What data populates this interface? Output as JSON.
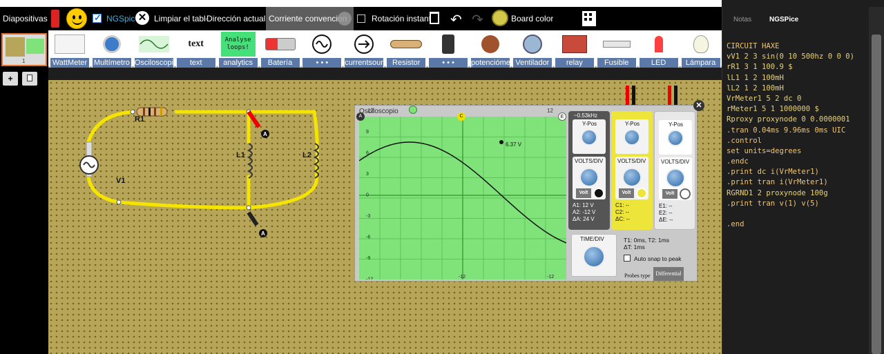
{
  "toolbar": {
    "slides_label": "Diapositivas",
    "ngspice_label": "NGSpice",
    "clear_board": "Limpiar el tablero",
    "current_dir_label": "Dirección actual:",
    "current_dir_value": "Corriente convencional",
    "rotation_label": "Rotación instantá",
    "board_color": "Board color"
  },
  "sidebar": {
    "slide_number": "1",
    "add_label": "+"
  },
  "components": [
    {
      "name": "WattMeter",
      "icon": "wattmeter-icon"
    },
    {
      "name": "Multímetro",
      "icon": "multimeter-icon"
    },
    {
      "name": "Osciloscopio",
      "icon": "oscilloscope-icon"
    },
    {
      "name": "text",
      "icon": "text-icon",
      "icon_text": "text"
    },
    {
      "name": "analytics",
      "icon": "analyse-icon",
      "icon_text": "Analyse loops!"
    },
    {
      "name": "Batería",
      "icon": "battery-icon"
    },
    {
      "name": "• • •",
      "icon": "ac-source-icon"
    },
    {
      "name": "currentsource",
      "icon": "current-source-icon"
    },
    {
      "name": "Resistor",
      "icon": "resistor-icon"
    },
    {
      "name": "• • •",
      "icon": "switch-icon"
    },
    {
      "name": "potenciómetro",
      "icon": "potentiometer-icon"
    },
    {
      "name": "Ventilador",
      "icon": "fan-icon"
    },
    {
      "name": "relay",
      "icon": "relay-icon"
    },
    {
      "name": "Fusible",
      "icon": "fuse-icon"
    },
    {
      "name": "LED",
      "icon": "led-icon"
    },
    {
      "name": "Lámpara",
      "icon": "lamp-icon"
    }
  ],
  "circuit": {
    "r1_label": "R1",
    "v1_label": "V1",
    "l1_label": "L1",
    "l2_label": "L2",
    "probe_a": "A"
  },
  "oscilloscope": {
    "title": "Osciloscopio",
    "top_left": "12",
    "top_right": "12",
    "marker_c": "C",
    "marker_e": "E",
    "marker_a": "A",
    "peak_label": "6.37 V",
    "y_ticks": [
      "9",
      "6",
      "3",
      "0",
      "-3",
      "-6",
      "-9",
      "-12"
    ],
    "bottom_center": "-12",
    "bottom_right": "-12",
    "channel_a": {
      "freq": "~0.53kHz",
      "ypos": "Y-Pos",
      "volts": "VOLTS/DIV",
      "volt_btn": "Volt",
      "readout1": "A1: 12 V",
      "readout2": "A2: -12 V",
      "readout3": "ΔA: 24 V"
    },
    "channel_c": {
      "ypos": "Y-Pos",
      "volts": "VOLTS/DIV",
      "volt_btn": "Volt",
      "readout1": "C1: --",
      "readout2": "C2: --",
      "readout3": "ΔC: --"
    },
    "channel_e": {
      "ypos": "Y-Pos",
      "volts": "VOLTS/DIV",
      "volt_btn": "Volt",
      "readout1": "E1: --",
      "readout2": "E2: --",
      "readout3": "ΔE: --"
    },
    "timediv": "TIME/DIV",
    "t_readout": "T1: 0ms, T2: 1ms",
    "dt_readout": "ΔT: 1ms",
    "autosnap": "Auto snap to peak",
    "probes_type": "Probes type",
    "differential": "Differential"
  },
  "right_panel": {
    "tab_notas": "Notas",
    "tab_ngspice": "NGSPice",
    "code_lines": [
      "CIRCUIT HAXE",
      "vV1 2 3 sin(0 10 500hz 0 0 0)",
      "rR1 3 1 100.9 $",
      "lL1 1 2 100mH",
      "lL2 1 2 100mH",
      "VrMeter1 5 2 dc 0",
      "rMeter1 5 1 1000000 $",
      "Rproxy proxynode 0 0.0000001",
      ".tran 0.04ms 9.96ms 0ms UIC",
      ".control",
      "set units=degrees",
      ".endc",
      ".print dc i(VrMeter1)",
      ".print tran i(VrMeter1)",
      "RGRND1 2 proxynode 100g",
      ".print tran v(1) v(5)",
      "",
      ".end"
    ]
  },
  "colors": {
    "board": "#b7a659",
    "wire": "#f4e400",
    "screen": "#7fe37a",
    "toolbar_label": "#5a78a8"
  }
}
